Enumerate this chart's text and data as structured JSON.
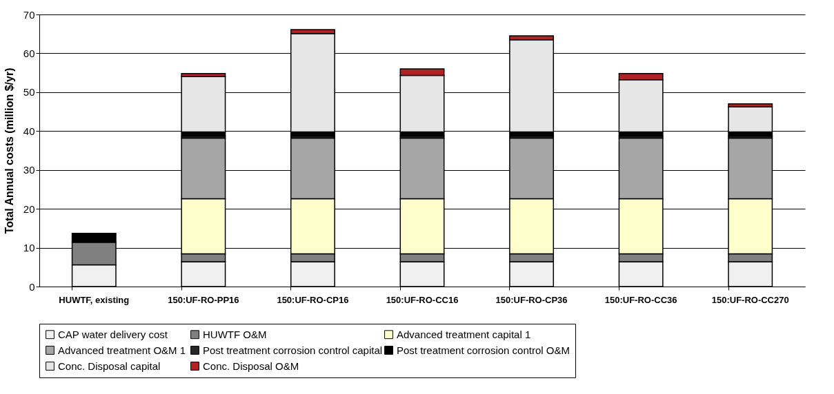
{
  "chart_data": {
    "type": "bar",
    "stacked": true,
    "ylabel": "Total Annual costs (million $/yr)",
    "categories": [
      "HUWTF, existing",
      "150:UF-RO-PP16",
      "150:UF-RO-CP16",
      "150:UF-RO-CC16",
      "150:UF-RO-CP36",
      "150:UF-RO-CC36",
      "150:UF-RO-CC270"
    ],
    "ylim": [
      0,
      70
    ],
    "yticks": [
      0,
      10,
      20,
      30,
      40,
      50,
      60,
      70
    ],
    "grid": "y",
    "legend": "bottom",
    "series": [
      {
        "name": "CAP water delivery cost",
        "color": "#f0f0f0",
        "values": [
          5.6,
          6.4,
          6.4,
          6.4,
          6.4,
          6.4,
          6.4
        ]
      },
      {
        "name": "HUWTF O&M",
        "color": "#808080",
        "values": [
          5.8,
          2.0,
          2.0,
          2.0,
          2.0,
          2.0,
          2.0
        ]
      },
      {
        "name": "Advanced treatment capital 1",
        "color": "#ffffcc",
        "values": [
          null,
          14.2,
          14.2,
          14.2,
          14.2,
          14.2,
          14.2
        ]
      },
      {
        "name": "Advanced treatment O&M  1",
        "color": "#a6a6a6",
        "values": [
          null,
          15.6,
          15.6,
          15.6,
          15.6,
          15.6,
          15.6
        ]
      },
      {
        "name": "Post treatment corrosion control capital",
        "color": "#262626",
        "values": [
          null,
          0.5,
          0.5,
          0.5,
          0.5,
          0.5,
          0.5
        ]
      },
      {
        "name": "Post treatment corrosion control O&M",
        "color": "#000000",
        "values": [
          2.3,
          1.1,
          1.1,
          1.1,
          1.1,
          1.1,
          1.1
        ]
      },
      {
        "name": "Conc. Disposal capital",
        "color": "#e6e6e6",
        "values": [
          null,
          14.2,
          25.3,
          14.5,
          23.7,
          13.4,
          6.4
        ]
      },
      {
        "name": "Conc. Disposal O&M",
        "color": "#b22222",
        "values": [
          null,
          0.8,
          1.0,
          1.7,
          1.0,
          1.6,
          0.8
        ]
      }
    ]
  }
}
